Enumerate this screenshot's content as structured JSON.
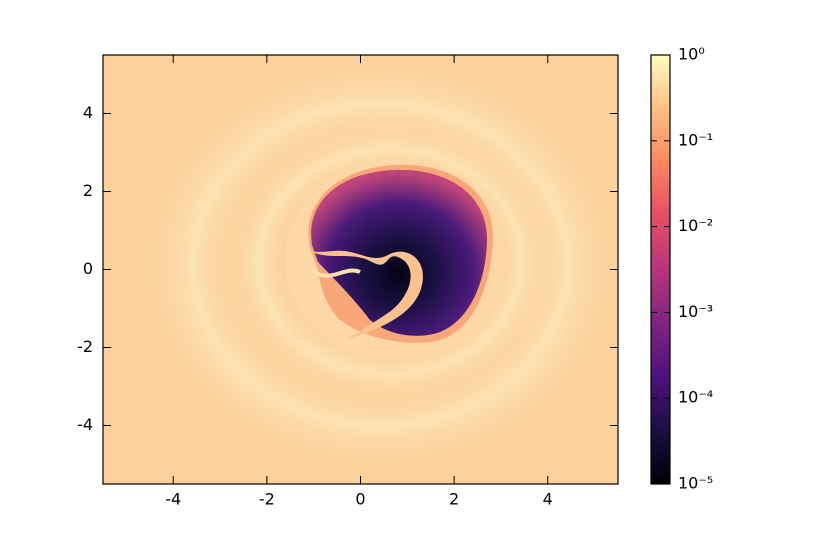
{
  "chart_data": {
    "type": "heatmap",
    "xlim": [
      -5.5,
      5.5
    ],
    "xticks": [
      -4,
      -2,
      0,
      2,
      4
    ],
    "ylim": [
      -5.5,
      5.5
    ],
    "yticks": [
      -4,
      -2,
      0,
      2,
      4
    ],
    "colormap": "magma",
    "colorbar": {
      "log": true,
      "lim": [
        1e-05,
        1
      ],
      "ticks": [
        {
          "value": 1,
          "label": "10⁰"
        },
        {
          "value": 0.1,
          "label": "10⁻¹"
        },
        {
          "value": 0.01,
          "label": "10⁻²"
        },
        {
          "value": 0.001,
          "label": "10⁻³"
        },
        {
          "value": 0.0001,
          "label": "10⁻⁴"
        },
        {
          "value": 1e-05,
          "label": "10⁻⁵"
        }
      ]
    }
  }
}
